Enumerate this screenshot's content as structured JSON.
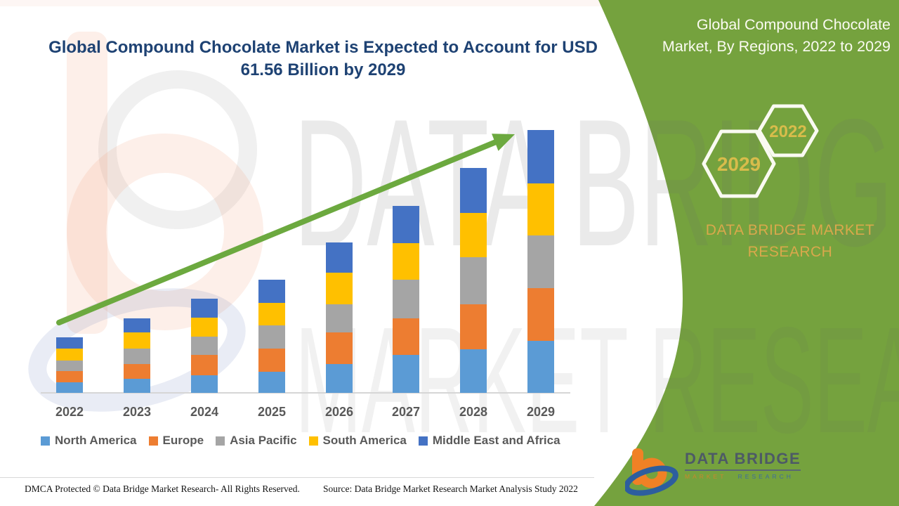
{
  "page": {
    "title_line1": "Global Compound Chocolate Market is Expected to Account for USD",
    "title_line2": "61.56 Billion by 2029"
  },
  "side_panel": {
    "header_line1": "Global Compound Chocolate",
    "header_line2": "Market, By Regions, 2022 to 2029",
    "hexagons": [
      {
        "label": "2029"
      },
      {
        "label": "2022"
      }
    ],
    "brand_text": "DATA BRIDGE MARKET RESEARCH",
    "logo": {
      "title": "DATA BRIDGE",
      "sub1": "MARKET",
      "sub2": "RESEARCH"
    }
  },
  "watermark": {
    "line1": "DATA BRIDGE",
    "line2": "MARKET RESEARCH"
  },
  "footer": {
    "left": "DMCA Protected © Data Bridge Market Research- All Rights Reserved.",
    "right": "Source: Data Bridge Market Research Market Analysis Study 2022"
  },
  "colors": {
    "panel_green": "#75A23E",
    "arrow_green": "#6CA93F",
    "title_blue": "#1E4273",
    "gold_year": "#D8BC4B",
    "gold_brand": "#D9A84C",
    "axis_text": "#595959"
  },
  "chart_data": {
    "type": "bar",
    "stacked": true,
    "title": "Global Compound Chocolate Market is Expected to Account for USD 61.56 Billion by 2029",
    "categories": [
      "2022",
      "2023",
      "2024",
      "2025",
      "2026",
      "2027",
      "2028",
      "2029"
    ],
    "series": [
      {
        "name": "North America",
        "color": "#5B9BD5",
        "values": [
          2.5,
          3.3,
          4.1,
          4.9,
          6.7,
          8.9,
          10.2,
          12.2
        ]
      },
      {
        "name": "Europe",
        "color": "#ED7D31",
        "values": [
          2.6,
          3.5,
          4.8,
          5.4,
          7.4,
          8.6,
          10.5,
          12.3
        ]
      },
      {
        "name": "Asia Pacific",
        "color": "#A5A5A5",
        "values": [
          2.5,
          3.6,
          4.3,
          5.4,
          6.6,
          9.1,
          11.0,
          12.3
        ]
      },
      {
        "name": "South America",
        "color": "#FFC000",
        "values": [
          2.8,
          3.8,
          4.4,
          5.3,
          7.4,
          8.6,
          10.4,
          12.2
        ]
      },
      {
        "name": "Middle East and Africa",
        "color": "#4472C4",
        "values": [
          2.6,
          3.3,
          4.4,
          5.4,
          7.1,
          8.8,
          10.5,
          12.56
        ]
      }
    ],
    "totals_estimated": [
      13.0,
      17.5,
      22.0,
      26.4,
      35.2,
      44.0,
      52.6,
      61.56
    ],
    "units": "USD Billion (segment values estimated from bar heights; only the 2029 total 61.56 is labeled on the image)",
    "xlabel": "",
    "ylabel": "",
    "y_axis": "hidden",
    "gridlines": false,
    "legend_position": "bottom",
    "annotations": [
      "green upward trend arrow spanning 2022 to 2029"
    ]
  }
}
